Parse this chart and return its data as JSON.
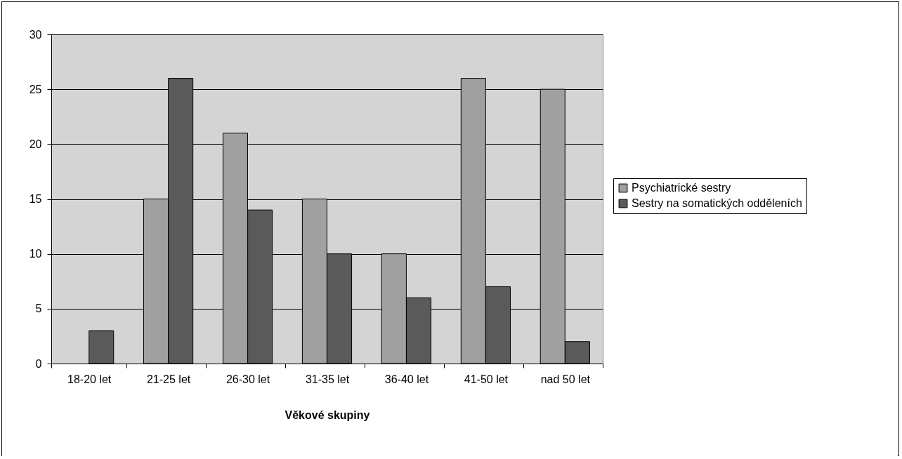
{
  "chart_data": {
    "type": "bar",
    "xlabel": "Věkové skupiny",
    "categories": [
      "18-20 let",
      "21-25 let",
      "26-30 let",
      "31-35 let",
      "36-40 let",
      "41-50 let",
      "nad 50 let"
    ],
    "series": [
      {
        "name": "Psychiatrické sestry",
        "color": "#a0a0a0",
        "values": [
          null,
          15,
          21,
          15,
          10,
          26,
          25
        ]
      },
      {
        "name": "Sestry na somatických odděleních",
        "color": "#5a5a5a",
        "values": [
          3,
          26,
          14,
          10,
          6,
          7,
          2
        ]
      }
    ],
    "ylim": [
      0,
      30
    ],
    "yticks": [
      0,
      5,
      10,
      15,
      20,
      25,
      30
    ],
    "grid": "y",
    "legend": "right"
  }
}
